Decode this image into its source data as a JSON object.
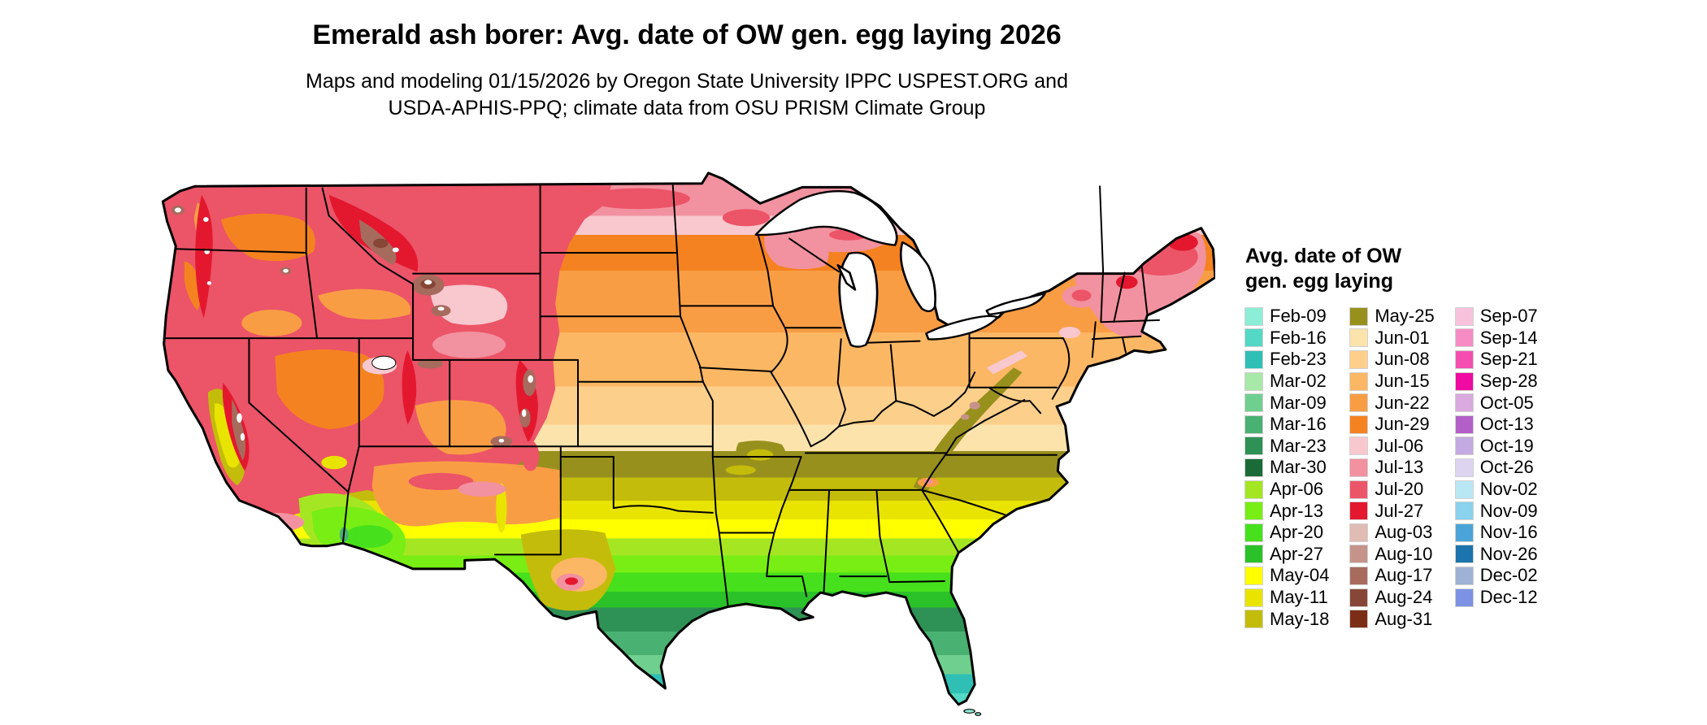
{
  "header": {
    "title": "Emerald ash borer: Avg. date of OW gen. egg laying 2026",
    "subtitle_line1": "Maps and modeling 01/15/2026 by Oregon State University IPPC USPEST.ORG and",
    "subtitle_line2": "USDA-APHIS-PPQ; climate data from OSU PRISM Climate Group"
  },
  "legend": {
    "title_line1": "Avg. date of OW",
    "title_line2": "gen. egg laying",
    "columns": [
      [
        {
          "label": "Feb-09",
          "color": "#8ceed6"
        },
        {
          "label": "Feb-16",
          "color": "#52d8c5"
        },
        {
          "label": "Feb-23",
          "color": "#2fbfb4"
        },
        {
          "label": "Mar-02",
          "color": "#a8e8a8"
        },
        {
          "label": "Mar-09",
          "color": "#6fcf8e"
        },
        {
          "label": "Mar-16",
          "color": "#49b171"
        },
        {
          "label": "Mar-23",
          "color": "#2e9155"
        },
        {
          "label": "Mar-30",
          "color": "#1b6b38"
        },
        {
          "label": "Apr-06",
          "color": "#a5e622"
        },
        {
          "label": "Apr-13",
          "color": "#78ee14"
        },
        {
          "label": "Apr-20",
          "color": "#46e01c"
        },
        {
          "label": "Apr-27",
          "color": "#2bc229"
        },
        {
          "label": "May-04",
          "color": "#ffff00"
        },
        {
          "label": "May-11",
          "color": "#e8e400"
        },
        {
          "label": "May-18",
          "color": "#c4bc0a"
        }
      ],
      [
        {
          "label": "May-25",
          "color": "#98901d"
        },
        {
          "label": "Jun-01",
          "color": "#fce3ac"
        },
        {
          "label": "Jun-08",
          "color": "#fccf8b"
        },
        {
          "label": "Jun-15",
          "color": "#fbb763"
        },
        {
          "label": "Jun-22",
          "color": "#f99d45"
        },
        {
          "label": "Jun-29",
          "color": "#f58220"
        },
        {
          "label": "Jul-06",
          "color": "#f8c8ce"
        },
        {
          "label": "Jul-13",
          "color": "#f2919f"
        },
        {
          "label": "Jul-20",
          "color": "#ec5468"
        },
        {
          "label": "Jul-27",
          "color": "#e3182f"
        },
        {
          "label": "Aug-03",
          "color": "#e0bcb4"
        },
        {
          "label": "Aug-10",
          "color": "#c6938a"
        },
        {
          "label": "Aug-17",
          "color": "#a76b5e"
        },
        {
          "label": "Aug-24",
          "color": "#874737"
        },
        {
          "label": "Aug-31",
          "color": "#7c2d16"
        }
      ],
      [
        {
          "label": "Sep-07",
          "color": "#f9c2dc"
        },
        {
          "label": "Sep-14",
          "color": "#f78cc5"
        },
        {
          "label": "Sep-21",
          "color": "#f44fb0"
        },
        {
          "label": "Sep-28",
          "color": "#ef0aa2"
        },
        {
          "label": "Oct-05",
          "color": "#d9a9e0"
        },
        {
          "label": "Oct-13",
          "color": "#b260c8"
        },
        {
          "label": "Oct-19",
          "color": "#c3aae0"
        },
        {
          "label": "Oct-26",
          "color": "#ddd4f0"
        },
        {
          "label": "Nov-02",
          "color": "#b9e8f4"
        },
        {
          "label": "Nov-09",
          "color": "#8ad2ee"
        },
        {
          "label": "Nov-16",
          "color": "#4aa4d8"
        },
        {
          "label": "Nov-26",
          "color": "#1b74ac"
        },
        {
          "label": "Dec-02",
          "color": "#9fb2d6"
        },
        {
          "label": "Dec-12",
          "color": "#7e92e4"
        }
      ]
    ]
  },
  "map": {
    "gradient_bands": [
      {
        "label": "Jul-13",
        "from": 50,
        "to": 92
      },
      {
        "label": "Jul-06",
        "from": 92,
        "to": 112
      },
      {
        "label": "Jun-29",
        "from": 112,
        "to": 150
      },
      {
        "label": "Jun-22",
        "from": 150,
        "to": 215
      },
      {
        "label": "Jun-15",
        "from": 215,
        "to": 272
      },
      {
        "label": "Jun-08",
        "from": 272,
        "to": 312
      },
      {
        "label": "Jun-01",
        "from": 312,
        "to": 340
      },
      {
        "label": "May-25",
        "from": 340,
        "to": 368
      },
      {
        "label": "May-18",
        "from": 368,
        "to": 392
      },
      {
        "label": "May-11",
        "from": 392,
        "to": 412
      },
      {
        "label": "May-04",
        "from": 412,
        "to": 432
      },
      {
        "label": "Apr-06",
        "from": 432,
        "to": 450
      },
      {
        "label": "Apr-13",
        "from": 450,
        "to": 468
      },
      {
        "label": "Apr-20",
        "from": 468,
        "to": 488
      },
      {
        "label": "Apr-27",
        "from": 488,
        "to": 505
      },
      {
        "label": "Mar-23",
        "from": 505,
        "to": 530
      },
      {
        "label": "Mar-16",
        "from": 530,
        "to": 555
      },
      {
        "label": "Mar-09",
        "from": 555,
        "to": 575
      },
      {
        "label": "Feb-23",
        "from": 575,
        "to": 595
      },
      {
        "label": "Feb-16",
        "from": 595,
        "to": 620
      }
    ]
  }
}
